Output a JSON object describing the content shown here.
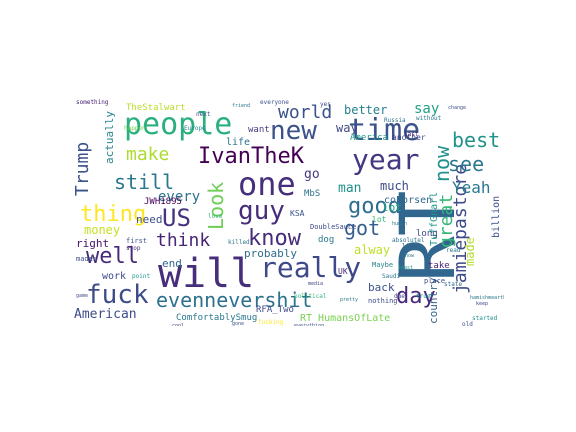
{
  "cloud": {
    "words": [
      {
        "text": "RT",
        "color": "#31678e",
        "vertical": true
      },
      {
        "text": "will",
        "color": "#472e7c",
        "vertical": false
      },
      {
        "text": "people",
        "color": "#2ab07f",
        "vertical": false
      },
      {
        "text": "one",
        "color": "#472f7d",
        "vertical": false
      },
      {
        "text": "time",
        "color": "#3b528b",
        "vertical": false
      },
      {
        "text": "year",
        "color": "#453781",
        "vertical": false
      },
      {
        "text": "really",
        "color": "#3e4989",
        "vertical": false
      },
      {
        "text": "fuck",
        "color": "#3e4c8a",
        "vertical": false
      },
      {
        "text": "evennevershit",
        "color": "#2c718e",
        "vertical": false
      },
      {
        "text": "day",
        "color": "#482878",
        "vertical": false
      },
      {
        "text": "guy",
        "color": "#472d7b",
        "vertical": false
      },
      {
        "text": "know",
        "color": "#472c7a",
        "vertical": false
      },
      {
        "text": "IvanTheK",
        "color": "#440154",
        "vertical": false
      },
      {
        "text": "new",
        "color": "#3b528b",
        "vertical": false
      },
      {
        "text": "world",
        "color": "#3b518b",
        "vertical": false
      },
      {
        "text": "make",
        "color": "#addc30",
        "vertical": false
      },
      {
        "text": "still",
        "color": "#2a788e",
        "vertical": false
      },
      {
        "text": "thing",
        "color": "#fde725",
        "vertical": false
      },
      {
        "text": "well",
        "color": "#472a7a",
        "vertical": false
      },
      {
        "text": "US",
        "color": "#46327e",
        "vertical": false
      },
      {
        "text": "think",
        "color": "#482576",
        "vertical": false
      },
      {
        "text": "good",
        "color": "#2e6d8e",
        "vertical": false
      },
      {
        "text": "got",
        "color": "#355f8d",
        "vertical": false
      },
      {
        "text": "Look",
        "color": "#6ece58",
        "vertical": true
      },
      {
        "text": "Trump",
        "color": "#3b528b",
        "vertical": true
      },
      {
        "text": "jamiepastore",
        "color": "#3e4a89",
        "vertical": true
      },
      {
        "text": "great",
        "color": "#35b779",
        "vertical": true
      },
      {
        "text": "now",
        "color": "#21918c",
        "vertical": true
      },
      {
        "text": "best",
        "color": "#20928c",
        "vertical": false
      },
      {
        "text": "see",
        "color": "#2a778e",
        "vertical": false
      },
      {
        "text": "made",
        "color": "#b5de2b",
        "vertical": true
      },
      {
        "text": "Yeah",
        "color": "#2a788e",
        "vertical": false
      },
      {
        "text": "say",
        "color": "#1fa187",
        "vertical": false
      },
      {
        "text": "better",
        "color": "#26828e",
        "vertical": false
      },
      {
        "text": "way",
        "color": "#3f4788",
        "vertical": false
      },
      {
        "text": "man",
        "color": "#21918c",
        "vertical": false
      },
      {
        "text": "much",
        "color": "#3e4a89",
        "vertical": false
      },
      {
        "text": "lot",
        "color": "#22a884",
        "vertical": false
      },
      {
        "text": "go",
        "color": "#453882",
        "vertical": false
      },
      {
        "text": "American",
        "color": "#3e4c8a",
        "vertical": false
      },
      {
        "text": "back",
        "color": "#3b528b",
        "vertical": false
      },
      {
        "text": "alway",
        "color": "#bddf26",
        "vertical": false
      },
      {
        "text": "right",
        "color": "#471365",
        "vertical": false
      },
      {
        "text": "money",
        "color": "#c8e020",
        "vertical": false
      },
      {
        "text": "every",
        "color": "#2c728e",
        "vertical": false
      },
      {
        "text": "need",
        "color": "#3d4e8a",
        "vertical": false
      },
      {
        "text": "probably",
        "color": "#2f6c8e",
        "vertical": false
      },
      {
        "text": "end",
        "color": "#31688e",
        "vertical": false
      },
      {
        "text": "actually",
        "color": "#25858e",
        "vertical": true
      },
      {
        "text": "country",
        "color": "#32658e",
        "vertical": true
      },
      {
        "text": "TuffGnarl",
        "color": "#1f998a",
        "vertical": true
      },
      {
        "text": "billion",
        "color": "#3b528b",
        "vertical": true
      },
      {
        "text": "RT HumansOfLate",
        "color": "#7ad151",
        "vertical": false
      },
      {
        "text": "ComfortablySmug",
        "color": "#2a788e",
        "vertical": false
      },
      {
        "text": "RFA_Two",
        "color": "#3e4c8a",
        "vertical": false
      },
      {
        "text": "work",
        "color": "#3e4989",
        "vertical": false
      },
      {
        "text": "JWH1895",
        "color": "#440154",
        "vertical": false
      },
      {
        "text": "TheStalwart",
        "color": "#b8de29",
        "vertical": false
      },
      {
        "text": "conorsen",
        "color": "#31688e",
        "vertical": false
      },
      {
        "text": "America",
        "color": "#1f9a8a",
        "vertical": false
      },
      {
        "text": "another",
        "color": "#3f4788",
        "vertical": false
      },
      {
        "text": "life",
        "color": "#2d708e",
        "vertical": false
      },
      {
        "text": "want",
        "color": "#443983",
        "vertical": false
      },
      {
        "text": "take",
        "color": "#482173",
        "vertical": false
      },
      {
        "text": "long",
        "color": "#3e4a89",
        "vertical": false
      },
      {
        "text": "Maybe",
        "color": "#25848e",
        "vertical": false
      },
      {
        "text": "MbS",
        "color": "#2c728e",
        "vertical": false
      },
      {
        "text": "KSA",
        "color": "#3b528b",
        "vertical": false
      },
      {
        "text": "UK",
        "color": "#472c7a",
        "vertical": false
      },
      {
        "text": "dog",
        "color": "#2a788e",
        "vertical": false
      },
      {
        "text": "lot",
        "color": "#32b67a",
        "vertical": false
      },
      {
        "text": "place",
        "color": "#3e4a89",
        "vertical": false
      },
      {
        "text": "something",
        "color": "#482173",
        "vertical": false
      },
      {
        "text": "everyone",
        "color": "#3b528b",
        "vertical": false
      },
      {
        "text": "Russia",
        "color": "#2c728e",
        "vertical": false
      },
      {
        "text": "without",
        "color": "#2a788e",
        "vertical": false
      },
      {
        "text": "mades",
        "color": "#3e4a89",
        "vertical": false
      },
      {
        "text": "point",
        "color": "#1f998a",
        "vertical": false
      },
      {
        "text": "first",
        "color": "#3b528b",
        "vertical": false
      },
      {
        "text": "stop",
        "color": "#472c7a",
        "vertical": false
      },
      {
        "text": "nothing",
        "color": "#3e4c8a",
        "vertical": false
      },
      {
        "text": "state",
        "color": "#31688e",
        "vertical": false
      },
      {
        "text": "hamishmearther",
        "color": "#2a788e",
        "vertical": false
      },
      {
        "text": "started",
        "color": "#21918c",
        "vertical": false
      },
      {
        "text": "everything",
        "color": "#3b528b",
        "vertical": false
      },
      {
        "text": "absolutel",
        "color": "#2c728e",
        "vertical": false
      },
      {
        "text": "DoubleSauce",
        "color": "#3e4a89",
        "vertical": false
      },
      {
        "text": "political",
        "color": "#35b779",
        "vertical": false
      },
      {
        "text": "show",
        "color": "#2a788e",
        "vertical": false
      },
      {
        "text": "lissie",
        "color": "#32658e",
        "vertical": false
      },
      {
        "text": "Europe",
        "color": "#25848e",
        "vertical": false
      },
      {
        "text": "happen",
        "color": "#6ece58",
        "vertical": false
      },
      {
        "text": "next",
        "color": "#3b528b",
        "vertical": false
      },
      {
        "text": "read",
        "color": "#2a788e",
        "vertical": false
      },
      {
        "text": "yes",
        "color": "#3e4a89",
        "vertical": false
      },
      {
        "text": "old",
        "color": "#3b528b",
        "vertical": false
      },
      {
        "text": "last",
        "color": "#472c7a",
        "vertical": false
      },
      {
        "text": "human",
        "color": "#2c728e",
        "vertical": false
      },
      {
        "text": "true",
        "color": "#1f998a",
        "vertical": false
      },
      {
        "text": "due",
        "color": "#3e4a89",
        "vertical": false
      },
      {
        "text": "Saudi",
        "color": "#2a788e",
        "vertical": false
      },
      {
        "text": "change",
        "color": "#3b528b",
        "vertical": false
      },
      {
        "text": "love",
        "color": "#35b779",
        "vertical": false
      },
      {
        "text": "game",
        "color": "#3e4c8a",
        "vertical": false
      },
      {
        "text": "killed",
        "color": "#2a788e",
        "vertical": false
      },
      {
        "text": "fucking",
        "color": "#fde725",
        "vertical": false
      },
      {
        "text": "gone",
        "color": "#3b528b",
        "vertical": false
      },
      {
        "text": "keep",
        "color": "#3e4a89",
        "vertical": false
      },
      {
        "text": "friend",
        "color": "#2c728e",
        "vertical": false
      },
      {
        "text": "cool",
        "color": "#472c7a",
        "vertical": false
      },
      {
        "text": "least",
        "color": "#1f998a",
        "vertical": false
      },
      {
        "text": "media",
        "color": "#3e4a89",
        "vertical": false
      },
      {
        "text": "pretty",
        "color": "#2a788e",
        "vertical": false
      }
    ]
  }
}
